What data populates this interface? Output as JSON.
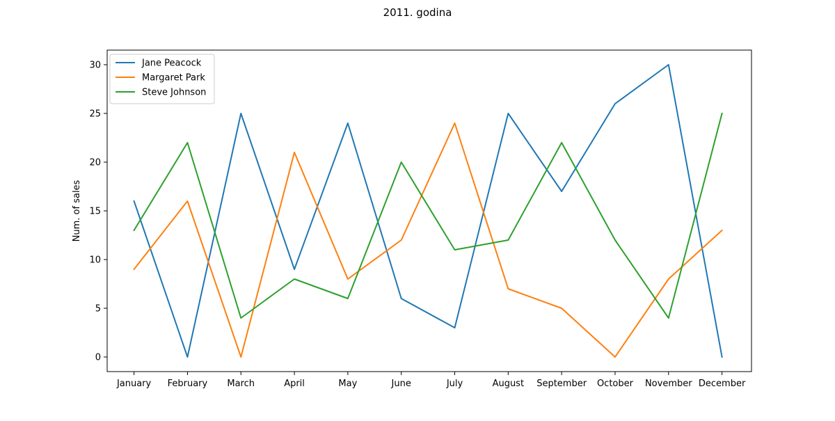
{
  "chart_data": {
    "type": "line",
    "title": "2011. godina",
    "xlabel": "",
    "ylabel": "Num. of sales",
    "categories": [
      "January",
      "February",
      "March",
      "April",
      "May",
      "June",
      "July",
      "August",
      "September",
      "October",
      "November",
      "December"
    ],
    "ylim": [
      -1.5,
      31.5
    ],
    "yticks": [
      0,
      5,
      10,
      15,
      20,
      25,
      30
    ],
    "grid": false,
    "legend_position": "top-left",
    "series": [
      {
        "name": "Jane Peacock",
        "color": "#1f77b4",
        "values": [
          16,
          0,
          25,
          9,
          24,
          6,
          3,
          25,
          17,
          26,
          30,
          0
        ]
      },
      {
        "name": "Margaret Park",
        "color": "#ff7f0e",
        "values": [
          9,
          16,
          0,
          21,
          8,
          12,
          24,
          7,
          5,
          0,
          8,
          13
        ]
      },
      {
        "name": "Steve Johnson",
        "color": "#2ca02c",
        "values": [
          13,
          22,
          4,
          8,
          6,
          20,
          11,
          12,
          22,
          12,
          4,
          25
        ]
      }
    ]
  }
}
